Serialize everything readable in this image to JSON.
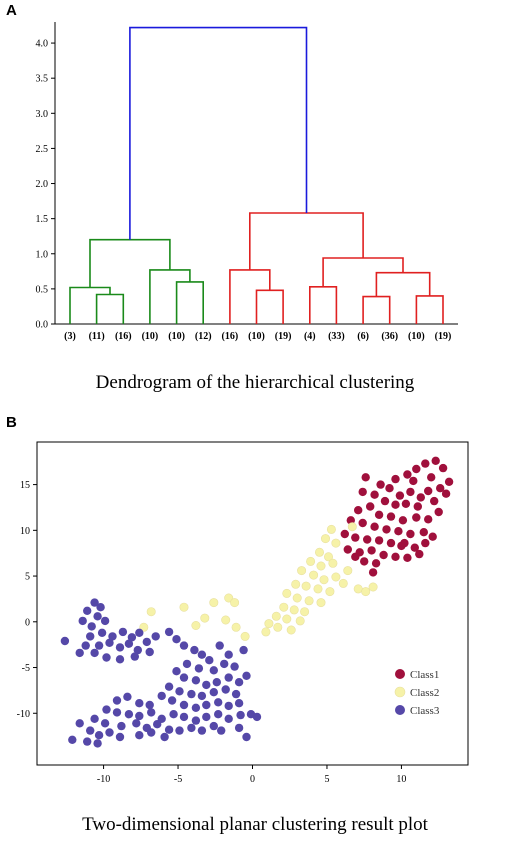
{
  "panels": {
    "a_label": "A",
    "b_label": "B"
  },
  "captions": {
    "dendrogram": "Dendrogram of the hierarchical clustering",
    "scatter": "Two-dimensional planar clustering result plot"
  },
  "chart_data": [
    {
      "type": "dendrogram",
      "title": "",
      "ylim": [
        0,
        4.3
      ],
      "y_ticks": [
        0.0,
        0.5,
        1.0,
        1.5,
        2.0,
        2.5,
        3.0,
        3.5,
        4.0
      ],
      "y_tick_labels": [
        "0.0",
        "0.5",
        "1.0",
        "1.5",
        "2.0",
        "2.5",
        "3.0",
        "3.5",
        "4.0"
      ],
      "leaves": [
        "(3)",
        "(11)",
        "(16)",
        "(10)",
        "(10)",
        "(12)",
        "(16)",
        "(10)",
        "(19)",
        "(4)",
        "(33)",
        "(6)",
        "(36)",
        "(10)",
        "(19)"
      ],
      "merges": [
        {
          "children": [
            "L1",
            "L2"
          ],
          "height": 0.42,
          "id": "n1",
          "color": "#1a8a1a"
        },
        {
          "children": [
            "L0",
            "n1"
          ],
          "height": 0.52,
          "id": "n2",
          "color": "#1a8a1a"
        },
        {
          "children": [
            "L4",
            "L5"
          ],
          "height": 0.6,
          "id": "n3",
          "color": "#1a8a1a"
        },
        {
          "children": [
            "L3",
            "n3"
          ],
          "height": 0.77,
          "id": "n4",
          "color": "#1a8a1a"
        },
        {
          "children": [
            "n2",
            "n4"
          ],
          "height": 1.2,
          "id": "n5",
          "color": "#1a8a1a"
        },
        {
          "children": [
            "L7",
            "L8"
          ],
          "height": 0.48,
          "id": "n6",
          "color": "#e02020"
        },
        {
          "children": [
            "L6",
            "n6"
          ],
          "height": 0.77,
          "id": "n7",
          "color": "#e02020"
        },
        {
          "children": [
            "L9",
            "L10"
          ],
          "height": 0.53,
          "id": "n8",
          "color": "#e02020"
        },
        {
          "children": [
            "L11",
            "L12"
          ],
          "height": 0.39,
          "id": "n9",
          "color": "#e02020"
        },
        {
          "children": [
            "L13",
            "L14"
          ],
          "height": 0.4,
          "id": "n10",
          "color": "#e02020"
        },
        {
          "children": [
            "n9",
            "n10"
          ],
          "height": 0.73,
          "id": "n11",
          "color": "#e02020"
        },
        {
          "children": [
            "n8",
            "n11"
          ],
          "height": 0.94,
          "id": "n12",
          "color": "#e02020"
        },
        {
          "children": [
            "n7",
            "n12"
          ],
          "height": 1.58,
          "id": "n13",
          "color": "#e02020"
        },
        {
          "children": [
            "n5",
            "n13"
          ],
          "height": 4.22,
          "id": "n14",
          "color": "#1a1adc"
        }
      ]
    },
    {
      "type": "scatter",
      "title": "",
      "xlim": [
        -14,
        14
      ],
      "ylim": [
        -15,
        19
      ],
      "x_ticks": [
        -10,
        -5,
        0,
        5,
        10
      ],
      "x_tick_labels": [
        "-10",
        "-5",
        "0",
        "5",
        "10"
      ],
      "y_ticks": [
        -10,
        -5,
        0,
        5,
        10,
        15
      ],
      "y_tick_labels": [
        "-10",
        "-5",
        "0",
        "5",
        "10",
        "15"
      ],
      "legend_position": "bottom-right",
      "series": [
        {
          "name": "Class1",
          "color": "#a0103c",
          "points": [
            [
              12.3,
              17.6
            ],
            [
              11.6,
              17.3
            ],
            [
              12.8,
              16.8
            ],
            [
              11,
              16.7
            ],
            [
              10.4,
              16.1
            ],
            [
              9.6,
              15.6
            ],
            [
              10.8,
              15.4
            ],
            [
              12,
              15.8
            ],
            [
              13.2,
              15.3
            ],
            [
              12.6,
              14.6
            ],
            [
              11.8,
              14.3
            ],
            [
              13,
              14
            ],
            [
              11.3,
              13.6
            ],
            [
              10.6,
              14.2
            ],
            [
              9.9,
              13.8
            ],
            [
              9.2,
              14.6
            ],
            [
              8.6,
              15
            ],
            [
              8.2,
              13.9
            ],
            [
              8.9,
              13.2
            ],
            [
              9.6,
              12.8
            ],
            [
              10.3,
              12.9
            ],
            [
              11.1,
              12.6
            ],
            [
              12.2,
              13.2
            ],
            [
              7.6,
              15.8
            ],
            [
              7.4,
              14.2
            ],
            [
              7.9,
              12.6
            ],
            [
              8.5,
              11.7
            ],
            [
              9.3,
              11.5
            ],
            [
              10.1,
              11.1
            ],
            [
              11,
              11.4
            ],
            [
              11.8,
              11.2
            ],
            [
              12.5,
              12
            ],
            [
              7.1,
              12.2
            ],
            [
              6.6,
              11.1
            ],
            [
              7.4,
              10.8
            ],
            [
              8.2,
              10.4
            ],
            [
              9,
              10.1
            ],
            [
              9.8,
              9.9
            ],
            [
              10.6,
              9.6
            ],
            [
              11.5,
              9.8
            ],
            [
              6.2,
              9.6
            ],
            [
              6.9,
              9.2
            ],
            [
              7.7,
              9
            ],
            [
              8.5,
              8.9
            ],
            [
              9.3,
              8.6
            ],
            [
              10,
              8.3
            ],
            [
              10.9,
              8.1
            ],
            [
              11.6,
              8.6
            ],
            [
              6.4,
              7.9
            ],
            [
              7.2,
              7.6
            ],
            [
              8,
              7.8
            ],
            [
              8.8,
              7.3
            ],
            [
              9.6,
              7.1
            ],
            [
              10.4,
              7
            ],
            [
              11.2,
              7.4
            ],
            [
              7.5,
              6.6
            ],
            [
              8.3,
              6.4
            ],
            [
              6.9,
              7.1
            ],
            [
              8.1,
              5.4
            ],
            [
              10.2,
              8.6
            ],
            [
              12.1,
              9.3
            ]
          ]
        },
        {
          "name": "Class2",
          "color": "#f6f2a8",
          "points": [
            [
              5.3,
              10.1
            ],
            [
              4.9,
              9.1
            ],
            [
              5.6,
              8.6
            ],
            [
              4.5,
              7.6
            ],
            [
              5.1,
              7.1
            ],
            [
              3.9,
              6.6
            ],
            [
              4.6,
              6.1
            ],
            [
              5.4,
              6.4
            ],
            [
              3.3,
              5.6
            ],
            [
              4.1,
              5.1
            ],
            [
              4.8,
              4.6
            ],
            [
              5.6,
              4.9
            ],
            [
              2.9,
              4.1
            ],
            [
              3.6,
              3.9
            ],
            [
              4.4,
              3.6
            ],
            [
              5.2,
              3.3
            ],
            [
              6.1,
              4.2
            ],
            [
              6.4,
              5.6
            ],
            [
              2.3,
              3.1
            ],
            [
              3,
              2.6
            ],
            [
              3.8,
              2.3
            ],
            [
              4.6,
              2.1
            ],
            [
              2.1,
              1.6
            ],
            [
              2.8,
              1.3
            ],
            [
              3.5,
              1.1
            ],
            [
              1.6,
              0.6
            ],
            [
              2.3,
              0.3
            ],
            [
              1.1,
              -0.2
            ],
            [
              1.7,
              -0.6
            ],
            [
              0.9,
              -1.1
            ],
            [
              2.6,
              -0.9
            ],
            [
              3.2,
              0.1
            ],
            [
              -1.1,
              -0.6
            ],
            [
              -1.8,
              0.2
            ],
            [
              -3.2,
              0.4
            ],
            [
              -3.8,
              -0.4
            ],
            [
              -6.8,
              1.1
            ],
            [
              -7.3,
              -0.6
            ],
            [
              -4.6,
              1.6
            ],
            [
              -2.6,
              2.1
            ],
            [
              -1.6,
              2.6
            ],
            [
              -1.2,
              2.1
            ],
            [
              7.1,
              3.6
            ],
            [
              8.1,
              3.8
            ],
            [
              7.6,
              3.3
            ],
            [
              -0.5,
              -1.6
            ],
            [
              6.7,
              10.4
            ]
          ]
        },
        {
          "name": "Class3",
          "color": "#5548a8",
          "points": [
            [
              -10.6,
              2.1
            ],
            [
              -10.2,
              1.6
            ],
            [
              -11.1,
              1.2
            ],
            [
              -10.4,
              0.6
            ],
            [
              -11.4,
              0.1
            ],
            [
              -9.9,
              0.1
            ],
            [
              -10.8,
              -0.5
            ],
            [
              -12.6,
              -2.1
            ],
            [
              -10.9,
              -1.6
            ],
            [
              -10.1,
              -1.2
            ],
            [
              -9.4,
              -1.6
            ],
            [
              -8.7,
              -1.1
            ],
            [
              -8.1,
              -1.7
            ],
            [
              -7.6,
              -1.2
            ],
            [
              -7.1,
              -2.2
            ],
            [
              -6.5,
              -1.6
            ],
            [
              -5.6,
              -1.1
            ],
            [
              -5.1,
              -1.9
            ],
            [
              -11.2,
              -2.6
            ],
            [
              -10.3,
              -2.6
            ],
            [
              -9.6,
              -2.3
            ],
            [
              -8.9,
              -2.8
            ],
            [
              -8.3,
              -2.4
            ],
            [
              -7.7,
              -3.1
            ],
            [
              -6.9,
              -3.3
            ],
            [
              -11.6,
              -3.4
            ],
            [
              -10.6,
              -3.4
            ],
            [
              -9.8,
              -3.9
            ],
            [
              -8.9,
              -4.1
            ],
            [
              -7.9,
              -3.8
            ],
            [
              -4.6,
              -2.6
            ],
            [
              -3.9,
              -3.1
            ],
            [
              -3.4,
              -3.6
            ],
            [
              -2.9,
              -4.2
            ],
            [
              -4.4,
              -4.6
            ],
            [
              -3.6,
              -5.1
            ],
            [
              -2.6,
              -5.3
            ],
            [
              -1.9,
              -4.6
            ],
            [
              -1.2,
              -4.9
            ],
            [
              -1.6,
              -3.6
            ],
            [
              -2.2,
              -2.6
            ],
            [
              -0.6,
              -3.1
            ],
            [
              -5.1,
              -5.4
            ],
            [
              -4.6,
              -6.1
            ],
            [
              -3.8,
              -6.4
            ],
            [
              -3.1,
              -6.9
            ],
            [
              -2.4,
              -6.6
            ],
            [
              -1.6,
              -6.1
            ],
            [
              -0.9,
              -6.6
            ],
            [
              -0.4,
              -5.9
            ],
            [
              -5.6,
              -7.1
            ],
            [
              -4.9,
              -7.6
            ],
            [
              -4.1,
              -7.9
            ],
            [
              -3.4,
              -8.1
            ],
            [
              -2.6,
              -7.7
            ],
            [
              -1.8,
              -7.4
            ],
            [
              -1.1,
              -7.9
            ],
            [
              -6.1,
              -8.1
            ],
            [
              -5.4,
              -8.6
            ],
            [
              -4.6,
              -9.1
            ],
            [
              -3.8,
              -9.4
            ],
            [
              -3.1,
              -9.1
            ],
            [
              -2.3,
              -8.8
            ],
            [
              -1.6,
              -9.2
            ],
            [
              -0.9,
              -8.9
            ],
            [
              -9.1,
              -8.6
            ],
            [
              -8.4,
              -8.2
            ],
            [
              -7.6,
              -8.9
            ],
            [
              -6.9,
              -9.1
            ],
            [
              -9.8,
              -9.6
            ],
            [
              -9.1,
              -9.9
            ],
            [
              -8.3,
              -10.1
            ],
            [
              -7.6,
              -10.3
            ],
            [
              -6.8,
              -9.9
            ],
            [
              -6.1,
              -10.6
            ],
            [
              -5.3,
              -10.1
            ],
            [
              -4.6,
              -10.4
            ],
            [
              -3.8,
              -10.8
            ],
            [
              -3.1,
              -10.4
            ],
            [
              -2.3,
              -10.1
            ],
            [
              -1.6,
              -10.6
            ],
            [
              -0.8,
              -10.2
            ],
            [
              -0.1,
              -10.1
            ],
            [
              0.3,
              -10.4
            ],
            [
              -10.6,
              -10.6
            ],
            [
              -9.9,
              -11.1
            ],
            [
              -8.8,
              -11.4
            ],
            [
              -7.8,
              -11.1
            ],
            [
              -7.1,
              -11.6
            ],
            [
              -6.4,
              -11.2
            ],
            [
              -5.6,
              -11.8
            ],
            [
              -4.9,
              -11.9
            ],
            [
              -4.1,
              -11.6
            ],
            [
              -3.4,
              -11.9
            ],
            [
              -2.6,
              -11.4
            ],
            [
              -11.6,
              -11.1
            ],
            [
              -10.9,
              -11.9
            ],
            [
              -10.3,
              -12.4
            ],
            [
              -9.6,
              -12.1
            ],
            [
              -8.9,
              -12.6
            ],
            [
              -7.6,
              -12.4
            ],
            [
              -6.8,
              -12.1
            ],
            [
              -5.9,
              -12.6
            ],
            [
              -12.1,
              -12.9
            ],
            [
              -11.1,
              -13.1
            ],
            [
              -10.4,
              -13.3
            ],
            [
              -0.4,
              -12.6
            ],
            [
              -0.9,
              -11.6
            ],
            [
              -2.1,
              -11.9
            ]
          ]
        }
      ]
    }
  ]
}
